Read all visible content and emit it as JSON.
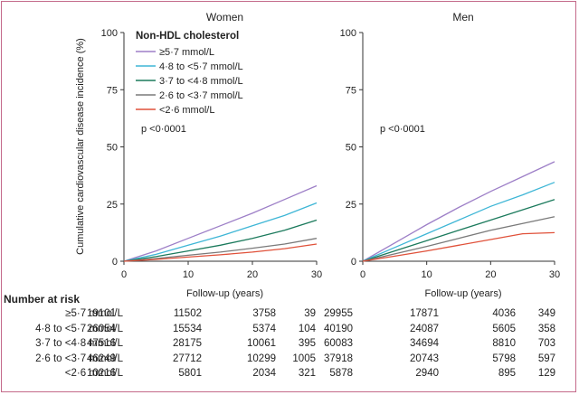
{
  "chart_data": {
    "type": "line",
    "ylabel": "Cumulative cardiovascular disease incidence (%)",
    "xlabel": "Follow-up (years)",
    "xlim": [
      0,
      30
    ],
    "ylim": [
      0,
      100
    ],
    "xticks": [
      "0",
      "10",
      "20",
      "30"
    ],
    "yticks": [
      "0",
      "25",
      "50",
      "75",
      "100"
    ],
    "legend_title": "Non-HDL cholesterol",
    "legend": [
      {
        "name": "≥5·7 mmol/L",
        "color": "#9d7fc7"
      },
      {
        "name": "4·8 to <5·7 mmol/L",
        "color": "#3eb6d6"
      },
      {
        "name": "3·7 to <4·8 mmol/L",
        "color": "#1b7a5c"
      },
      {
        "name": "2·6 to <3·7 mmol/L",
        "color": "#7a7a7a"
      },
      {
        "name": "<2·6 mmol/L",
        "color": "#e0513a"
      }
    ],
    "panels": [
      {
        "title": "Women",
        "pvalue": "p <0·0001",
        "x": [
          0,
          5,
          10,
          15,
          20,
          25,
          30
        ],
        "series": [
          {
            "name": "≥5·7 mmol/L",
            "values": [
              0,
              4.5,
              10,
              15.5,
              21,
              27,
              33
            ]
          },
          {
            "name": "4·8 to <5·7 mmol/L",
            "values": [
              0,
              3,
              7,
              11,
              15.5,
              20,
              25.5
            ]
          },
          {
            "name": "3·7 to <4·8 mmol/L",
            "values": [
              0,
              2,
              4.5,
              7,
              10,
              13.5,
              18
            ]
          },
          {
            "name": "2·6 to <3·7 mmol/L",
            "values": [
              0,
              1.2,
              2.6,
              4,
              5.7,
              7.5,
              10
            ]
          },
          {
            "name": "<2·6 mmol/L",
            "values": [
              0,
              0.8,
              1.8,
              2.8,
              4,
              5.5,
              7.5
            ]
          }
        ]
      },
      {
        "title": "Men",
        "pvalue": "p <0·0001",
        "x": [
          0,
          5,
          10,
          15,
          20,
          25,
          30
        ],
        "series": [
          {
            "name": "≥5·7 mmol/L",
            "values": [
              0,
              8,
              16,
              23.5,
              30.5,
              37,
              43.5
            ]
          },
          {
            "name": "4·8 to <5·7 mmol/L",
            "values": [
              0,
              6,
              12,
              18,
              24,
              29,
              34.5
            ]
          },
          {
            "name": "3·7 to <4·8 mmol/L",
            "values": [
              0,
              4.5,
              9,
              13.5,
              18,
              22.5,
              27
            ]
          },
          {
            "name": "2·6 to <3·7 mmol/L",
            "values": [
              0,
              3.2,
              6.5,
              10,
              13.5,
              16.5,
              19.5
            ]
          },
          {
            "name": "<2·6 mmol/L",
            "values": [
              0,
              2.2,
              4.5,
              7,
              9.5,
              12,
              12.5
            ]
          }
        ]
      }
    ]
  },
  "risk_table": {
    "title": "Number at risk",
    "rows": [
      {
        "label": "≥5·7 mmol/L",
        "women": [
          "19101",
          "11502",
          "3758",
          "39"
        ],
        "men": [
          "29955",
          "17871",
          "4036",
          "349"
        ]
      },
      {
        "label": "4·8 to <5·7 mmol/L",
        "women": [
          "26054",
          "15534",
          "5374",
          "104"
        ],
        "men": [
          "40190",
          "24087",
          "5605",
          "358"
        ]
      },
      {
        "label": "3·7 to <4·8 mmol/L",
        "women": [
          "47516",
          "28175",
          "10061",
          "395"
        ],
        "men": [
          "60083",
          "34694",
          "8810",
          "703"
        ]
      },
      {
        "label": "2·6 to <3·7 mmol/L",
        "women": [
          "46249",
          "27712",
          "10299",
          "1005"
        ],
        "men": [
          "37918",
          "20743",
          "5798",
          "597"
        ]
      },
      {
        "label": "<2·6 mmol/L",
        "women": [
          "10216",
          "5801",
          "2034",
          "321"
        ],
        "men": [
          "5878",
          "2940",
          "895",
          "129"
        ]
      }
    ]
  }
}
